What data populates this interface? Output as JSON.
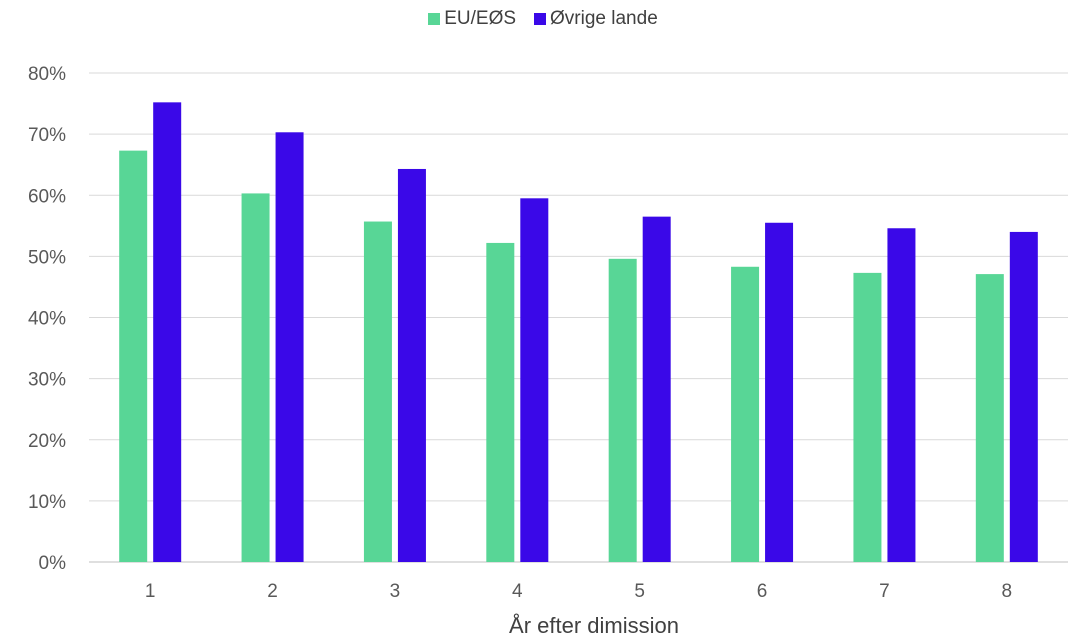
{
  "chart_data": {
    "type": "bar",
    "title": "",
    "xlabel": "År efter dimission",
    "ylabel": "",
    "categories": [
      "1",
      "2",
      "3",
      "4",
      "5",
      "6",
      "7",
      "8"
    ],
    "series": [
      {
        "name": "EU/EØS",
        "color": "#58d696",
        "values": [
          67.3,
          60.3,
          55.7,
          52.2,
          49.6,
          48.3,
          47.3,
          47.1
        ]
      },
      {
        "name": "Øvrige lande",
        "color": "#3a08e8",
        "values": [
          75.2,
          70.3,
          64.3,
          59.5,
          56.5,
          55.5,
          54.6,
          54.0
        ]
      }
    ],
    "y_ticks": [
      "0%",
      "10%",
      "20%",
      "30%",
      "40%",
      "50%",
      "60%",
      "70%",
      "80%"
    ],
    "ylim": [
      0,
      80
    ],
    "grid": true,
    "legend_position": "top-center"
  }
}
